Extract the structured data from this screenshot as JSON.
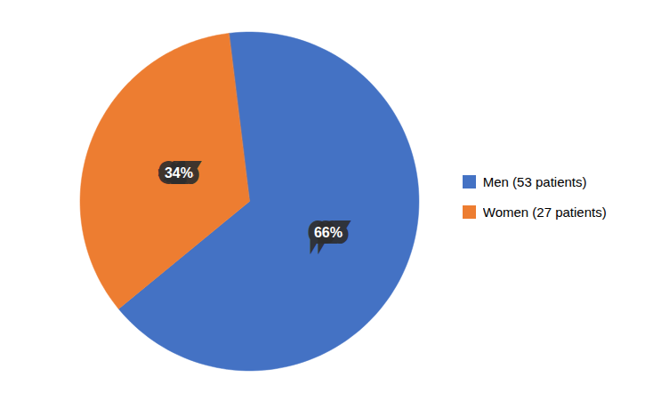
{
  "chart_data": {
    "type": "pie",
    "categories": [
      "Men (53 patients)",
      "Women (27 patients)"
    ],
    "values": [
      66,
      34
    ],
    "value_labels": [
      "66%",
      "34%"
    ],
    "colors": [
      "#4472C4",
      "#ED7D31"
    ],
    "data_labels": true,
    "legend": "right"
  }
}
